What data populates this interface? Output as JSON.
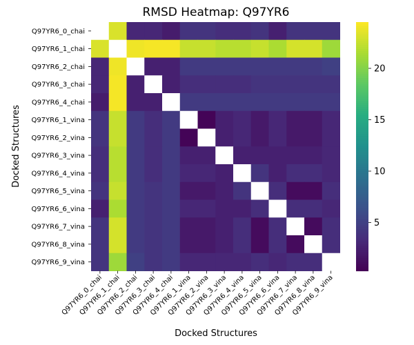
{
  "chart_data": {
    "type": "heatmap",
    "title": "RMSD Heatmap: Q97YR6",
    "xlabel": "Docked Structures",
    "ylabel": "Docked Structures",
    "labels": [
      "Q97YR6_0_chai",
      "Q97YR6_1_chai",
      "Q97YR6_2_chai",
      "Q97YR6_3_chai",
      "Q97YR6_4_chai",
      "Q97YR6_1_vina",
      "Q97YR6_2_vina",
      "Q97YR6_3_vina",
      "Q97YR6_4_vina",
      "Q97YR6_5_vina",
      "Q97YR6_6_vina",
      "Q97YR6_7_vina",
      "Q97YR6_8_vina",
      "Q97YR6_9_vina"
    ],
    "values": [
      [
        null,
        23.2,
        3.0,
        3.0,
        2.2,
        4.0,
        4.0,
        3.5,
        3.5,
        4.0,
        2.5,
        4.0,
        4.0,
        4.0
      ],
      [
        23.2,
        null,
        24.0,
        24.2,
        24.2,
        22.5,
        22.5,
        22.0,
        22.0,
        22.5,
        21.5,
        23.0,
        23.0,
        21.0
      ],
      [
        3.0,
        24.0,
        null,
        2.5,
        2.5,
        4.5,
        4.5,
        4.5,
        4.5,
        4.5,
        4.5,
        4.5,
        4.5,
        5.0
      ],
      [
        3.0,
        24.2,
        2.5,
        null,
        2.5,
        3.5,
        3.5,
        3.5,
        3.5,
        4.0,
        4.0,
        4.0,
        4.0,
        4.0
      ],
      [
        2.2,
        24.2,
        2.5,
        2.5,
        null,
        4.5,
        4.5,
        4.5,
        4.5,
        4.5,
        4.5,
        4.5,
        4.5,
        4.5
      ],
      [
        4.0,
        22.5,
        4.5,
        3.5,
        4.5,
        null,
        0.5,
        2.5,
        3.0,
        2.0,
        3.0,
        2.0,
        2.0,
        3.0
      ],
      [
        4.0,
        22.5,
        4.5,
        3.5,
        4.5,
        0.5,
        null,
        2.5,
        3.0,
        2.0,
        3.0,
        2.0,
        2.0,
        3.0
      ],
      [
        3.5,
        22.0,
        4.5,
        3.5,
        4.5,
        2.5,
        2.5,
        null,
        2.5,
        2.5,
        2.5,
        2.5,
        2.5,
        3.0
      ],
      [
        3.5,
        22.0,
        4.5,
        3.5,
        4.5,
        3.0,
        3.0,
        2.5,
        null,
        4.0,
        2.5,
        3.5,
        3.5,
        3.0
      ],
      [
        4.0,
        22.5,
        4.5,
        4.0,
        4.5,
        2.0,
        2.0,
        2.5,
        4.0,
        null,
        3.5,
        1.0,
        1.0,
        3.5
      ],
      [
        2.5,
        21.5,
        4.5,
        4.0,
        4.5,
        3.0,
        3.0,
        2.5,
        2.5,
        3.5,
        null,
        3.5,
        3.5,
        3.0
      ],
      [
        4.0,
        23.0,
        4.5,
        4.0,
        4.5,
        2.0,
        2.0,
        2.5,
        3.5,
        1.0,
        3.5,
        null,
        1.0,
        3.5
      ],
      [
        4.0,
        23.0,
        4.5,
        4.0,
        4.5,
        2.0,
        2.0,
        2.5,
        3.5,
        1.0,
        3.5,
        1.0,
        null,
        3.5
      ],
      [
        4.0,
        21.0,
        5.0,
        4.0,
        4.5,
        3.0,
        3.0,
        3.0,
        3.0,
        3.5,
        3.0,
        3.5,
        3.5,
        null
      ]
    ],
    "vmin": 0.3,
    "vmax": 24.5,
    "colormap": "viridis",
    "missing_color": "#ffffff",
    "colorbar_ticks": [
      5,
      10,
      15,
      20
    ]
  }
}
